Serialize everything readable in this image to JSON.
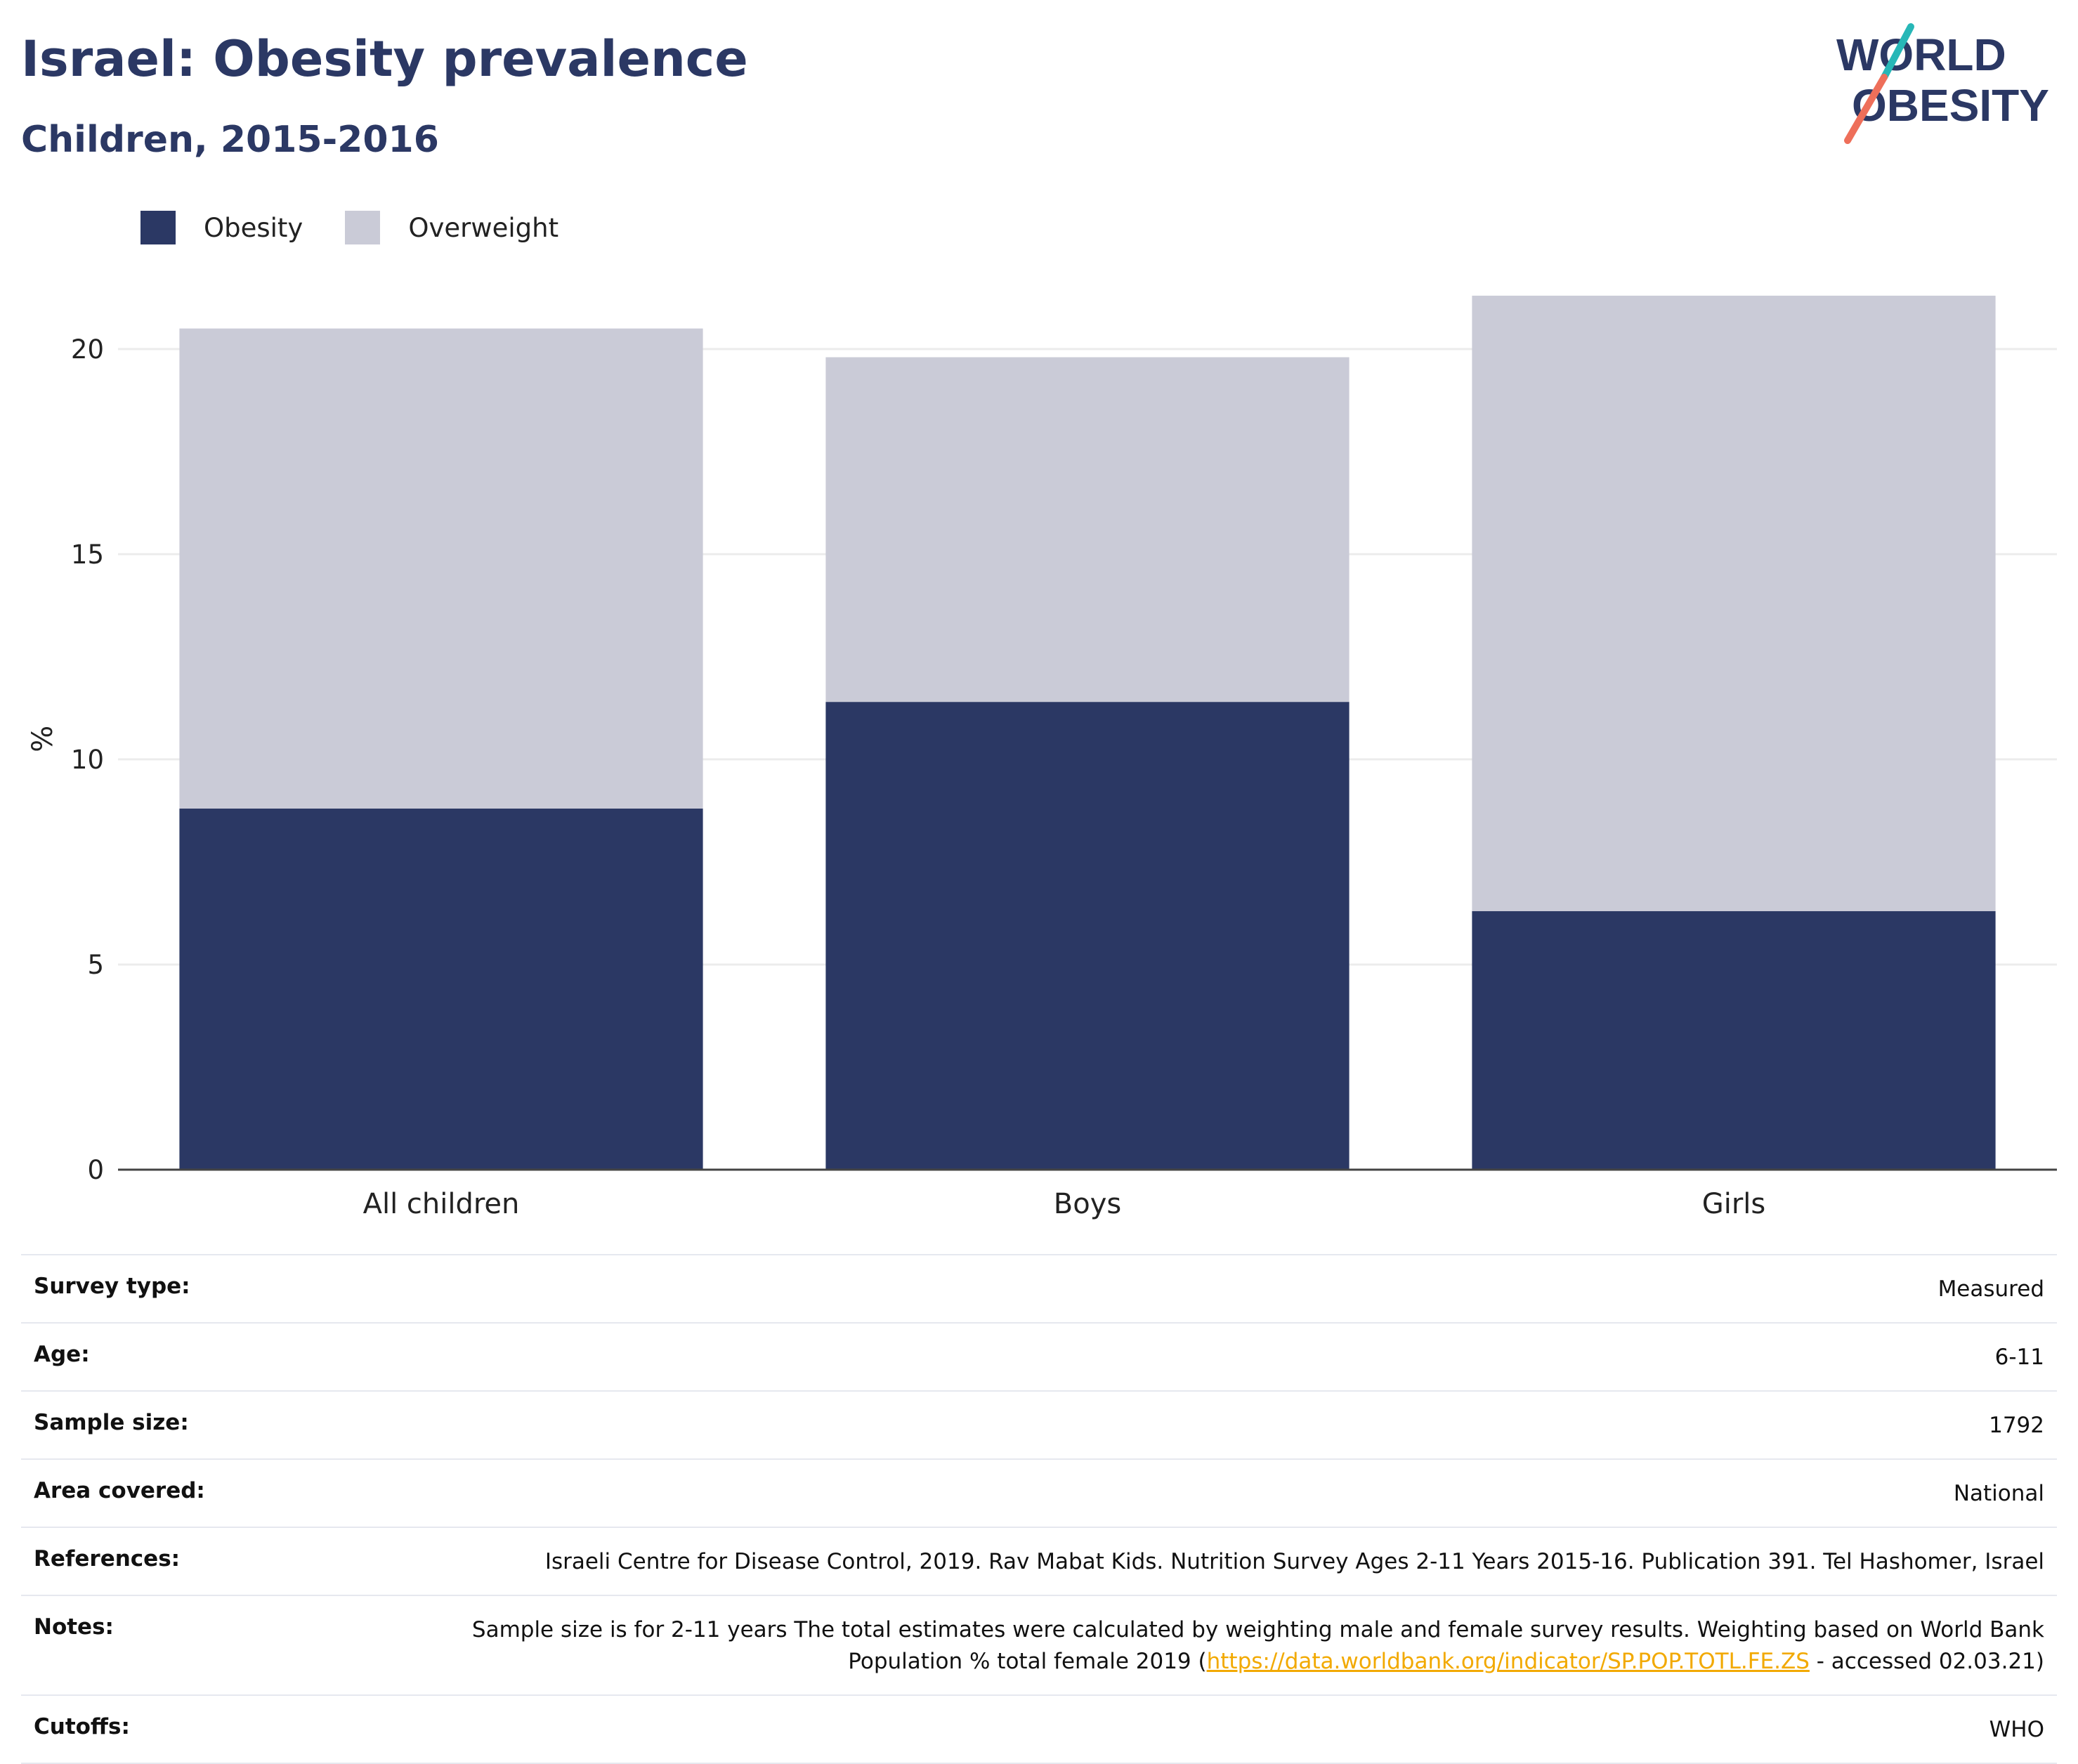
{
  "header": {
    "title": "Israel: Obesity prevalence",
    "subtitle": "Children, 2015-2016"
  },
  "logo": {
    "line1": "WORLD",
    "line2": "OBESITY"
  },
  "colors": {
    "obesity": "#2b3864",
    "overweight": "#cacbd7",
    "accent_teal": "#27b7b7",
    "accent_coral": "#ee6f5a",
    "link": "#f2a900"
  },
  "chart_data": {
    "type": "bar",
    "stacked": true,
    "categories": [
      "All children",
      "Boys",
      "Girls"
    ],
    "series": [
      {
        "name": "Obesity",
        "values": [
          8.8,
          11.4,
          6.3
        ]
      },
      {
        "name": "Overweight",
        "values": [
          11.7,
          8.4,
          15.0
        ]
      }
    ],
    "ylabel": "%",
    "ylim": [
      0,
      22
    ],
    "yticks": [
      0,
      5,
      10,
      15,
      20
    ],
    "grid": true,
    "legend": "top-left"
  },
  "meta": [
    {
      "label": "Survey type:",
      "value": "Measured"
    },
    {
      "label": "Age:",
      "value": "6-11"
    },
    {
      "label": "Sample size:",
      "value": "1792"
    },
    {
      "label": "Area covered:",
      "value": "National"
    },
    {
      "label": "References:",
      "value": "Israeli Centre for Disease Control, 2019. Rav Mabat Kids. Nutrition Survey Ages 2-11 Years 2015-16. Publication 391. Tel Hashomer, Israel"
    },
    {
      "label": "Notes:",
      "value_pre": "Sample size is for 2-11 years The total estimates were calculated by weighting male and female survey results. Weighting based on World Bank Population % total female 2019 (",
      "link": "https://data.worldbank.org/indicator/SP.POP.TOTL.FE.ZS",
      "value_post": " - accessed 02.03.21)"
    },
    {
      "label": "Cutoffs:",
      "value": "WHO"
    }
  ]
}
